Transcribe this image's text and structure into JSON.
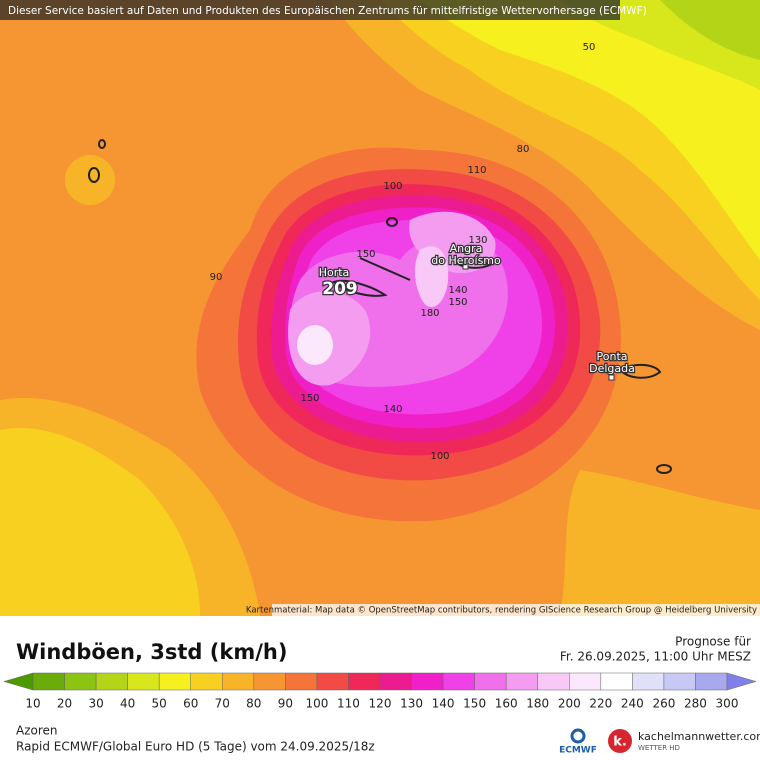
{
  "banner": "Dieser Service basiert auf Daten und Produkten des Europäischen Zentrums für mittelfristige Wettervorhersage (ECMWF)",
  "contour_labels": [
    50,
    80,
    100,
    110,
    90,
    150,
    130,
    140,
    150,
    180,
    150,
    140,
    100
  ],
  "places": [
    [
      "Horta"
    ],
    [
      "Angra",
      "do Heroísmo"
    ],
    [
      "Ponta",
      "Delgada"
    ]
  ],
  "max_value": 209,
  "attribution": "Kartenmaterial: Map data © OpenStreetMap contributors, rendering GIScience Research Group @ Heidelberg University",
  "footer": {
    "title": "Windböen, 3std (km/h)",
    "forecast_label": "Prognose für",
    "forecast_time": "Fr. 26.09.2025, 11:00 Uhr MESZ",
    "region": "Azoren",
    "model": "Rapid ECMWF/Global Euro HD (5 Tage) vom  24.09.2025/18z"
  },
  "legend": {
    "ticks": [
      10,
      20,
      30,
      40,
      50,
      60,
      70,
      80,
      90,
      100,
      110,
      120,
      130,
      140,
      150,
      160,
      180,
      200,
      220,
      240,
      260,
      280,
      300
    ],
    "colors": [
      "#4c9a00",
      "#6aac0a",
      "#8cc414",
      "#b4d418",
      "#d8e61c",
      "#f6f01e",
      "#f8d020",
      "#f8b428",
      "#f69632",
      "#f4743a",
      "#f24a44",
      "#f0285a",
      "#ec1c90",
      "#f020c8",
      "#f040e8",
      "#f070ec",
      "#f49cf0",
      "#f8c8f6",
      "#fce8fc",
      "#ffffff",
      "#e0e0f8",
      "#c8c8f4",
      "#a8a8ee",
      "#8080e8"
    ]
  },
  "logos": {
    "ecmwf": "ECMWF",
    "site": "kachelmannwetter.com",
    "site_sub": "WETTER HD"
  }
}
